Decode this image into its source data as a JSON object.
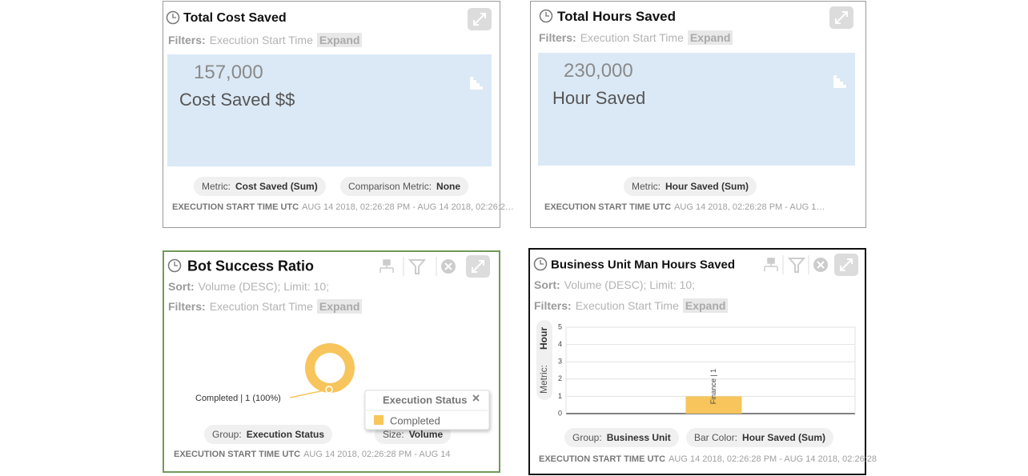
{
  "widgets": [
    {
      "title": "Total Cost Saved",
      "filters": {
        "label": "Filters:",
        "text": "Execution Start Time",
        "expand": "Expand"
      },
      "kpi_value": "157,000",
      "kpi_label": "Cost Saved $$",
      "pills": [
        {
          "label": "Metric:",
          "value": "Cost Saved (Sum)"
        },
        {
          "label": "Comparison Metric:",
          "value": "None"
        }
      ],
      "footer_label": "EXECUTION START TIME UTC",
      "footer_range": "AUG 14 2018, 02:26:28 PM - AUG 14 2018, 02:26:2…"
    },
    {
      "title": "Total Hours Saved",
      "filters": {
        "label": "Filters:",
        "text": "Execution Start Time",
        "expand": "Expand"
      },
      "kpi_value": "230,000",
      "kpi_label": "Hour Saved",
      "pills": [
        {
          "label": "Metric:",
          "value": "Hour Saved (Sum)"
        }
      ],
      "footer_label": "EXECUTION START TIME UTC",
      "footer_range": "AUG 14 2018, 02:26:28 PM - AUG 1…"
    },
    {
      "title": "Bot Success Ratio",
      "sort": {
        "label": "Sort:",
        "text": "Volume (DESC); Limit: 10;"
      },
      "filters": {
        "label": "Filters:",
        "text": "Execution Start Time",
        "expand": "Expand"
      },
      "chart": {
        "type": "pie",
        "categories": [
          "Completed"
        ],
        "values": [
          1
        ],
        "value_labels": [
          "Completed | 1 (100%)"
        ],
        "color": "#f7c55b",
        "legend_title": "Execution Status"
      },
      "pills": [
        {
          "label": "Group:",
          "value": "Execution Status"
        },
        {
          "label": "Size:",
          "value": "Volume"
        }
      ],
      "footer_label": "EXECUTION START TIME UTC",
      "footer_range": "AUG 14 2018, 02:26:28 PM - AUG 14"
    },
    {
      "title": "Business Unit Man Hours Saved",
      "sort": {
        "label": "Sort:",
        "text": "Volume (DESC); Limit: 10;"
      },
      "filters": {
        "label": "Filters:",
        "text": "Execution Start Time",
        "expand": "Expand"
      },
      "chart": {
        "type": "bar",
        "values": [
          1
        ],
        "value_labels": [
          "Finance | 1"
        ],
        "color": "#f7c55b",
        "ylim": [
          0,
          5
        ],
        "yticks": [
          0,
          1,
          2,
          3,
          4,
          5
        ],
        "grid": true,
        "y_label": "Metric:",
        "y_label_value": "Hour"
      },
      "pills": [
        {
          "label": "Group:",
          "value": "Business Unit"
        },
        {
          "label": "Bar Color:",
          "value": "Hour Saved (Sum)"
        }
      ],
      "footer_label": "EXECUTION START TIME UTC",
      "footer_range": "AUG 14 2018, 02:26:28 PM - AUG 14 2018, 02:26:28"
    }
  ]
}
